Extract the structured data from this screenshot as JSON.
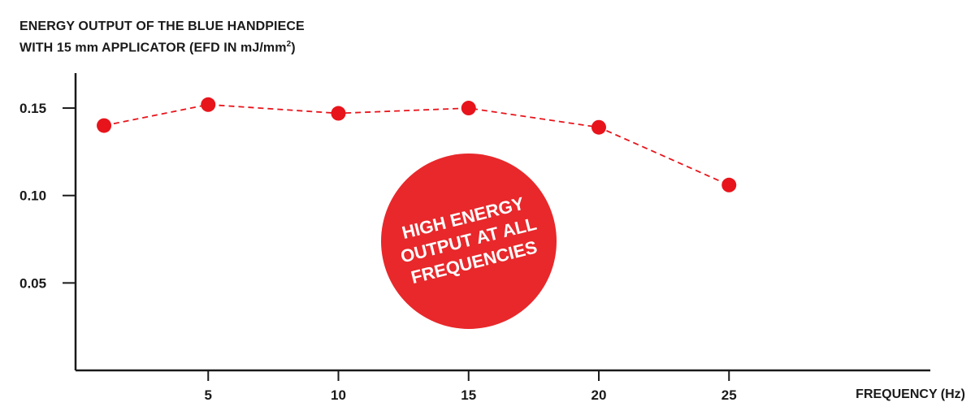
{
  "chart_data": {
    "type": "line",
    "title_line1": "ENERGY OUTPUT OF THE BLUE HANDPIECE",
    "title_line2_prefix": "WITH 15 mm APPLICATOR (EFD IN mJ/mm",
    "title_line2_sup": "2",
    "title_line2_suffix": ")",
    "xlabel": "FREQUENCY (Hz)",
    "ylabel": "",
    "x": [
      1,
      5,
      10,
      15,
      20,
      25
    ],
    "y": [
      0.14,
      0.152,
      0.147,
      0.15,
      0.139,
      0.106
    ],
    "xticks": [
      5,
      10,
      15,
      20,
      25
    ],
    "xtick_labels": [
      "5",
      "10",
      "15",
      "20",
      "25"
    ],
    "yticks": [
      0.05,
      0.1,
      0.15
    ],
    "ytick_labels": [
      "0.05",
      "0.10",
      "0.15"
    ],
    "xlim": [
      0,
      28
    ],
    "ylim": [
      0,
      0.17
    ],
    "line_style": "dashed",
    "color": "#e8141b",
    "grid": false,
    "annotation": {
      "lines": [
        "HIGH ENERGY",
        "OUTPUT AT ALL",
        "FREQUENCIES"
      ],
      "color": "#e8282b"
    }
  }
}
